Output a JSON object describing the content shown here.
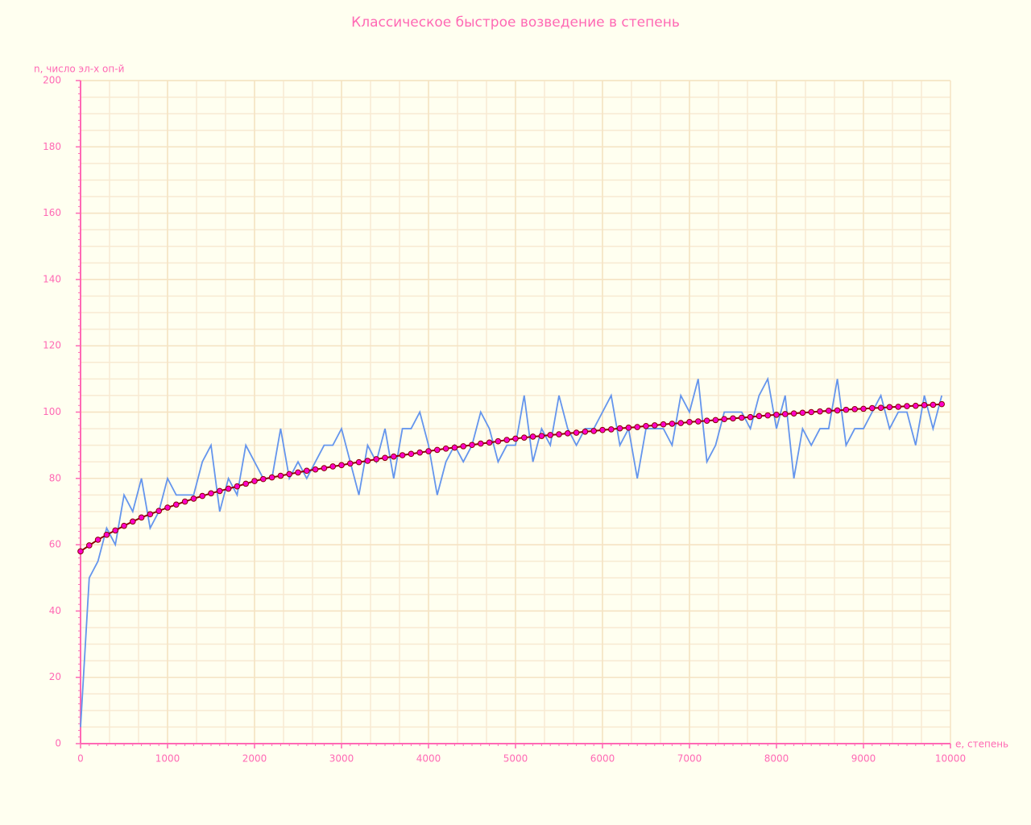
{
  "chart_data": {
    "type": "line",
    "title": "Классическое быстрое возведение в степень",
    "ylabel": "n, число эл-х оп-й",
    "xlabel": "e, степень",
    "x": [
      0,
      100,
      200,
      300,
      400,
      500,
      600,
      700,
      800,
      900,
      1000,
      1100,
      1200,
      1300,
      1400,
      1500,
      1600,
      1700,
      1800,
      1900,
      2000,
      2100,
      2200,
      2300,
      2400,
      2500,
      2600,
      2700,
      2800,
      2900,
      3000,
      3100,
      3200,
      3300,
      3400,
      3500,
      3600,
      3700,
      3800,
      3900,
      4000,
      4100,
      4200,
      4300,
      4400,
      4500,
      4600,
      4700,
      4800,
      4900,
      5000,
      5100,
      5200,
      5300,
      5400,
      5500,
      5600,
      5700,
      5800,
      5900,
      6000,
      6100,
      6200,
      6300,
      6400,
      6500,
      6600,
      6700,
      6800,
      6900,
      7000,
      7100,
      7200,
      7300,
      7400,
      7500,
      7600,
      7700,
      7800,
      7900,
      8000,
      8100,
      8200,
      8300,
      8400,
      8500,
      8600,
      8700,
      8800,
      8900,
      9000,
      9100,
      9200,
      9300,
      9400,
      9500,
      9600,
      9700,
      9800,
      9900
    ],
    "series": [
      {
        "color": "#6495ed",
        "markers": false,
        "values": [
          5,
          50,
          55,
          65,
          60,
          75,
          70,
          80,
          65,
          70,
          80,
          75,
          75,
          75,
          85,
          90,
          70,
          80,
          75,
          90,
          85,
          80,
          80,
          95,
          80,
          85,
          80,
          85,
          90,
          90,
          95,
          85,
          75,
          90,
          85,
          95,
          80,
          95,
          95,
          100,
          90,
          75,
          85,
          90,
          85,
          90,
          100,
          95,
          85,
          90,
          90,
          105,
          85,
          95,
          90,
          105,
          95,
          90,
          95,
          95,
          100,
          105,
          90,
          95,
          80,
          95,
          95,
          95,
          90,
          105,
          100,
          110,
          85,
          90,
          100,
          100,
          100,
          95,
          105,
          110,
          95,
          105,
          80,
          95,
          90,
          95,
          95,
          110,
          90,
          95,
          95,
          100,
          105,
          95,
          100,
          100,
          90,
          105,
          95,
          105
        ]
      },
      {
        "color": "#8b0000",
        "marker_color": "#ff00cc",
        "markers": true,
        "values": [
          58,
          59.8,
          61.5,
          63,
          64.3,
          65.7,
          67,
          68.2,
          69.2,
          70.2,
          71.2,
          72.1,
          73,
          73.9,
          74.7,
          75.5,
          76.2,
          76.9,
          77.6,
          78.4,
          79.2,
          79.8,
          80.3,
          80.8,
          81.3,
          81.8,
          82.3,
          82.7,
          83.1,
          83.6,
          84,
          84.5,
          84.9,
          85.3,
          85.8,
          86.2,
          86.6,
          87,
          87.4,
          87.8,
          88.2,
          88.6,
          89,
          89.3,
          89.7,
          90.1,
          90.5,
          90.8,
          91.2,
          91.6,
          92,
          92.3,
          92.6,
          92.8,
          93.1,
          93.3,
          93.6,
          93.8,
          94.1,
          94.3,
          94.6,
          94.8,
          95.1,
          95.3,
          95.5,
          95.8,
          96,
          96.3,
          96.5,
          96.7,
          97,
          97.2,
          97.4,
          97.6,
          97.9,
          98.1,
          98.3,
          98.5,
          98.8,
          99,
          99.2,
          99.4,
          99.6,
          99.8,
          100,
          100.2,
          100.4,
          100.5,
          100.7,
          100.9,
          101,
          101.2,
          101.3,
          101.5,
          101.6,
          101.8,
          101.9,
          102.1,
          102.2,
          102.4
        ]
      }
    ],
    "xlim": [
      0,
      10000
    ],
    "xticks": [
      0,
      1000,
      2000,
      3000,
      4000,
      5000,
      6000,
      7000,
      8000,
      9000,
      10000
    ],
    "ylim": [
      0,
      200
    ],
    "yticks": [
      0,
      20,
      40,
      60,
      80,
      100,
      120,
      140,
      160,
      180,
      200
    ],
    "grid": true
  }
}
